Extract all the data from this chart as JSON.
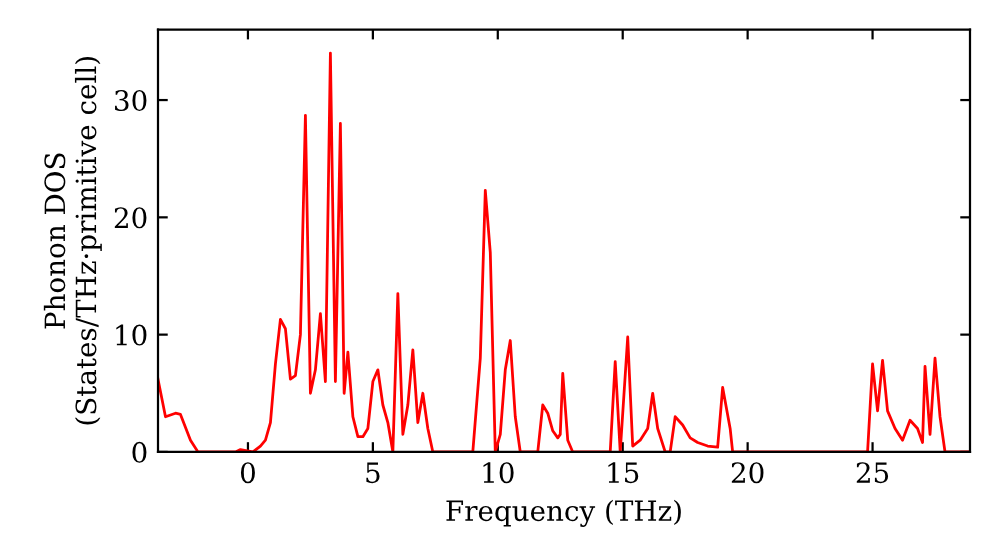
{
  "chart_data": {
    "type": "line",
    "xlabel": "Frequency (THz)",
    "ylabel": "Phonon DOS\n(States/THz·primitive cell)",
    "xlim": [
      -3.6,
      28.9
    ],
    "ylim": [
      0,
      36
    ],
    "xticks": [
      0,
      5,
      10,
      15,
      20,
      25
    ],
    "yticks": [
      0,
      10,
      20,
      30
    ],
    "grid": false,
    "legend": false,
    "marker": "none",
    "line_style": "solid",
    "series": [
      {
        "color": "#ff0000",
        "x": [
          -3.6,
          -3.3,
          -2.9,
          -2.7,
          -2.3,
          -2.0,
          -0.5,
          -0.3,
          0.2,
          0.5,
          0.7,
          0.9,
          1.1,
          1.3,
          1.5,
          1.7,
          1.9,
          2.1,
          2.3,
          2.5,
          2.7,
          2.9,
          3.1,
          3.3,
          3.5,
          3.7,
          3.85,
          4.0,
          4.2,
          4.4,
          4.6,
          4.8,
          5.0,
          5.2,
          5.4,
          5.6,
          5.8,
          6.0,
          6.2,
          6.4,
          6.6,
          6.8,
          7.0,
          7.2,
          7.4,
          9.0,
          9.3,
          9.5,
          9.7,
          9.9,
          10.1,
          10.3,
          10.5,
          10.7,
          10.9,
          11.6,
          11.8,
          12.0,
          12.2,
          12.4,
          12.5,
          12.6,
          12.8,
          13.0,
          14.5,
          14.7,
          14.9,
          15.2,
          15.4,
          15.7,
          16.0,
          16.2,
          16.4,
          16.7,
          16.9,
          17.1,
          17.4,
          17.7,
          18.0,
          18.4,
          18.8,
          19.0,
          19.3,
          19.4,
          24.8,
          25.0,
          25.2,
          25.4,
          25.6,
          25.9,
          26.2,
          26.5,
          26.8,
          27.0,
          27.1,
          27.3,
          27.5,
          27.7,
          27.9,
          28.9
        ],
        "values": [
          6.2,
          3,
          3.3,
          3.2,
          1,
          0,
          0,
          0.2,
          0,
          0.5,
          1,
          2.5,
          7.5,
          11.3,
          10.5,
          6.2,
          6.5,
          10,
          28.7,
          5,
          7,
          11.8,
          6,
          34,
          6,
          28,
          5,
          8.5,
          3,
          1.3,
          1.3,
          2,
          6,
          7,
          4,
          2.5,
          0,
          13.5,
          1.5,
          4,
          8.7,
          2.5,
          5,
          2,
          0,
          0,
          8,
          22.3,
          17,
          0,
          1.5,
          7,
          9.5,
          3,
          0,
          0,
          4,
          3.3,
          1.8,
          1.2,
          1.5,
          6.7,
          1,
          0,
          0,
          7.7,
          0,
          9.8,
          0.5,
          1,
          2,
          5,
          2,
          0,
          0,
          3,
          2.3,
          1.2,
          0.8,
          0.5,
          0.4,
          5.5,
          2,
          0,
          0,
          7.5,
          3.5,
          7.8,
          3.5,
          2,
          1,
          2.7,
          2,
          0.8,
          7.3,
          1.5,
          8,
          3,
          0,
          0
        ]
      }
    ]
  }
}
